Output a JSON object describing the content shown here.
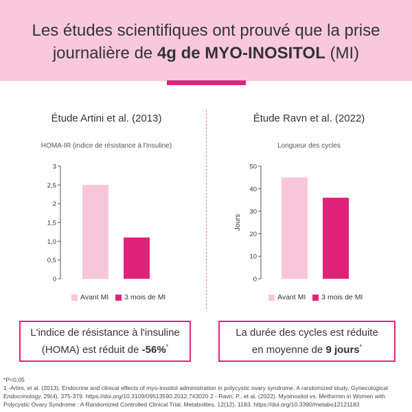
{
  "header": {
    "line1": "Les études scientifiques ont prouvé que la prise",
    "line2_prefix": "journalière de ",
    "line2_bold": "4g de MYO-INOSITOL",
    "line2_suffix": " (MI)"
  },
  "colors": {
    "light_pink": "#f8c6d9",
    "magenta": "#e0237a",
    "header_bg": "#f9c9db"
  },
  "chart_data": [
    {
      "type": "bar",
      "study_title": "Étude Artini et al. (2013)",
      "title": "HOMA-IR (indice de résistance à l'insuline)",
      "ylabel": "",
      "categories": [
        "Avant MI",
        "3 mois de MI"
      ],
      "values": [
        2.5,
        1.1
      ],
      "ylim": [
        0,
        3
      ],
      "ticks": [
        0,
        0.5,
        1,
        1.5,
        2,
        2.5,
        3
      ],
      "tick_labels": [
        "0",
        "0,5",
        "1,0",
        "1,5",
        "2",
        "2,5",
        "3"
      ],
      "legend": [
        "Avant MI",
        "3 mois de MI"
      ]
    },
    {
      "type": "bar",
      "study_title": "Étude Ravn et al. (2022)",
      "title": "Longueur des cycles",
      "ylabel": "Jours",
      "categories": [
        "Avant MI",
        "3 mois de MI"
      ],
      "values": [
        45,
        36
      ],
      "ylim": [
        0,
        50
      ],
      "ticks": [
        0,
        10,
        20,
        30,
        40,
        50
      ],
      "tick_labels": [
        "0",
        "10",
        "20",
        "30",
        "40",
        "50"
      ],
      "legend": [
        "Avant MI",
        "3 mois de MI"
      ]
    }
  ],
  "boxes": {
    "left": {
      "line1": "L'indice de résistance à l'insuline",
      "line2_prefix": "(HOMA) est réduit de ",
      "line2_bold": "-56%",
      "sup": "*"
    },
    "right": {
      "line1": "La durée des cycles est réduite",
      "line2_prefix": "en moyenne de ",
      "line2_bold": "9 jours",
      "sup": "*"
    }
  },
  "footnote": {
    "line1": "*P<0,05",
    "line2": "1 -Artini, et al. (2013). Endocrine and clinical effects of myo-inositol administration in polycystic ovary syndrome. A randomized study. Gynecological Endocrinology, 29(4), 375-379. https://doi.org/10.3109/09513590.2012.743020 2 - Ravn, P., et al. (2022). Myoinositol vs. Metformin in Women with Polycystic Ovary Syndrome : A Randomized Controlled Clinical Trial. Metabolites, 12(12), 1183. https://doi.org/10.3390/metabo12121183"
  }
}
